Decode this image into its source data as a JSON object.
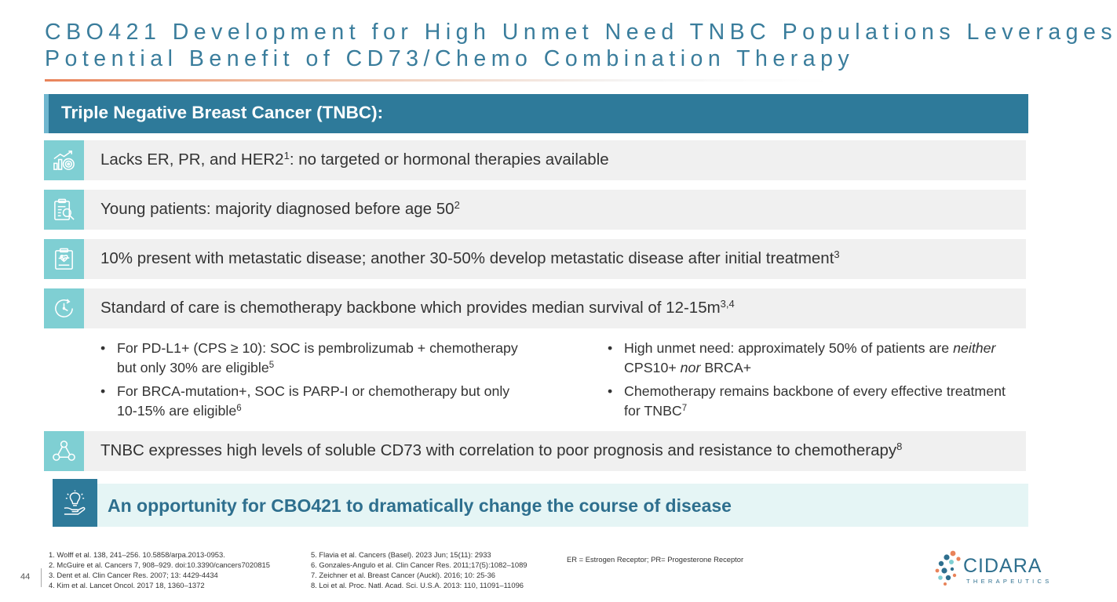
{
  "slide": {
    "title_line1": "CBO421 Development for High Unmet Need TNBC Populations Leverages",
    "title_line2": "Potential Benefit of CD73/Chemo Combination Therapy",
    "page_number": "44"
  },
  "banner": {
    "label": "Triple Negative Breast Cancer (TNBC):"
  },
  "rows": [
    {
      "icon": "growth-target-icon",
      "text": "Lacks ER, PR, and HER2",
      "sup": "1",
      "text_after": ": no targeted or hormonal therapies available"
    },
    {
      "icon": "clipboard-magnifier-icon",
      "text": "Young patients: majority diagnosed before age 50",
      "sup": "2",
      "text_after": ""
    },
    {
      "icon": "medical-clipboard-icon",
      "text": "10% present with metastatic disease; another 30-50% develop metastatic disease after initial treatment",
      "sup": "3",
      "text_after": ""
    },
    {
      "icon": "clock-cycle-icon",
      "text": "Standard of care is chemotherapy backbone which provides median survival of 12-15m",
      "sup": "3,4",
      "text_after": ""
    },
    {
      "icon": "molecule-network-icon",
      "text": "TNBC expresses high levels of soluble CD73 with correlation to poor prognosis and resistance to chemotherapy",
      "sup": "8",
      "text_after": ""
    }
  ],
  "bullets_left": [
    {
      "text": "For PD-L1+ (CPS ≥ 10):  SOC is pembrolizumab + chemotherapy but only 30% are eligible",
      "sup": "5"
    },
    {
      "text": "For BRCA-mutation+, SOC is PARP-I or chemotherapy but only 10-15% are eligible",
      "sup": "6"
    }
  ],
  "bullets_right": [
    {
      "a": "High unmet need: approximately 50% of patients are ",
      "em1": "neither",
      "b": " CPS10+ ",
      "em2": "nor",
      "c": " BRCA+"
    },
    {
      "text": "Chemotherapy remains backbone of every effective treatment for TNBC",
      "sup": "7"
    }
  ],
  "cta": {
    "icon": "lightbulb-hand-icon",
    "label": "An opportunity for CBO421 to dramatically change the course of disease"
  },
  "references_left": [
    "1. Wolff et al. 138, 241–256. 10.5858/arpa.2013-0953.",
    "2. McGuire et al.  Cancers 7, 908–929. doi:10.3390/cancers7020815",
    "3. Dent et al. Clin Cancer Res. 2007; 13: 4429-4434",
    "4. Kim  et al. Lancet Oncol. 2017 18, 1360–1372"
  ],
  "references_right": [
    "5. Flavia et al. Cancers (Basel). 2023 Jun; 15(11): 2933",
    "6. Gonzales-Angulo et al. Clin Cancer Res. 2011;17(5):1082–1089",
    "7. Zeichner et al. Breast Cancer (Auckl). 2016; 10: 25-36",
    "8. Loi et al. Proc. Natl. Acad. Sci. U.S.A. 2013: 110, 11091–11096"
  ],
  "abbreviations": "ER = Estrogen Receptor; PR= Progesterone Receptor",
  "logo": {
    "name": "CIDARA",
    "tagline": "THERAPEUTICS",
    "colors": {
      "primary": "#2e6f8e",
      "accent": "#e9835a"
    }
  },
  "colors": {
    "title": "#3a7d9c",
    "banner": "#2e7a9a",
    "icon_tile": "#7fcfd3",
    "row_bg": "#f0f0f0",
    "cta_bg": "#e5f5f5"
  }
}
